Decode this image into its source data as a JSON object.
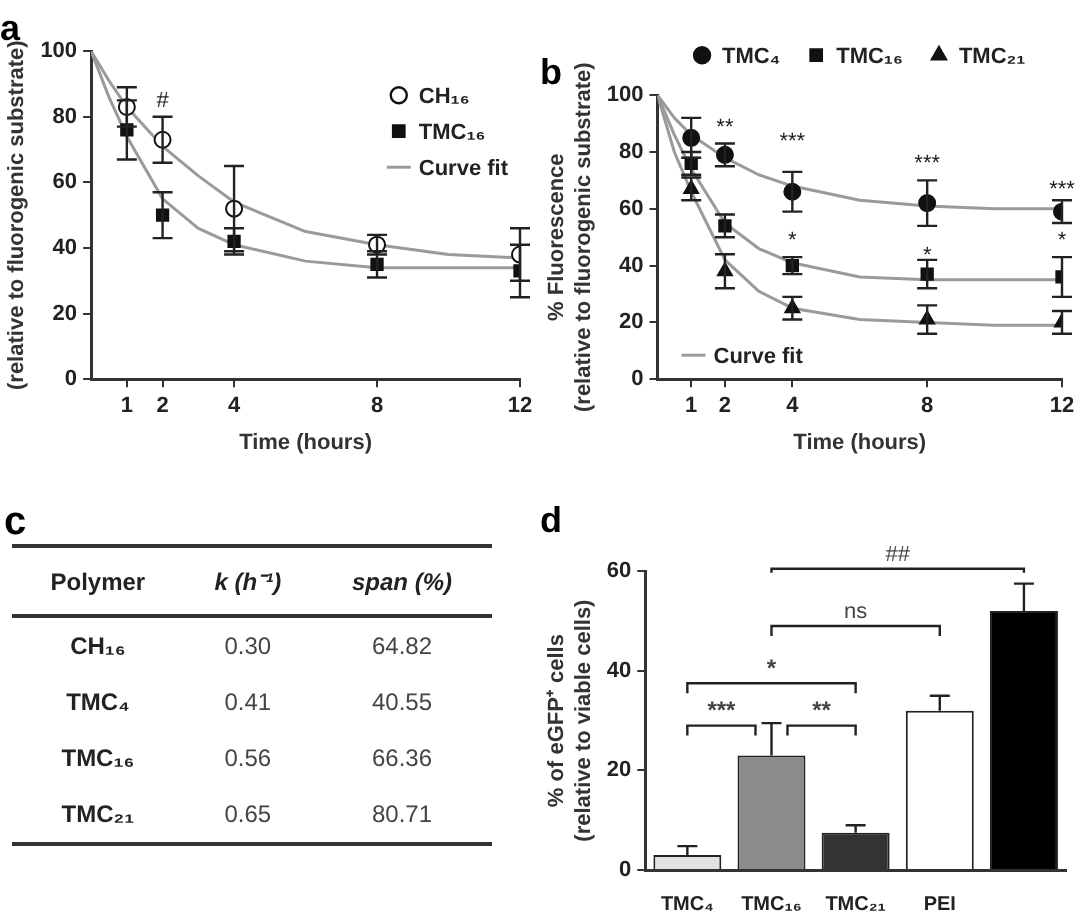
{
  "chart_data": [
    {
      "type": "scatter",
      "title": "a",
      "xlabel": "Time (hours)",
      "ylabel": "(relative to fluorogenic substrate)",
      "xlim": [
        0,
        12
      ],
      "xticks": [
        1,
        2,
        4,
        8,
        12
      ],
      "ylim": [
        0,
        100
      ],
      "yticks": [
        0,
        20,
        40,
        60,
        80,
        100
      ],
      "grid": false,
      "legend": "top right",
      "series": [
        {
          "name": "CH₁₆",
          "color": "#ffffff",
          "marker": "circle",
          "x": [
            1,
            2,
            4,
            8,
            12
          ],
          "values": [
            83,
            73,
            52,
            41,
            38
          ],
          "errors": [
            6,
            7,
            13,
            3,
            8
          ]
        },
        {
          "name": "TMC₁₆",
          "color": "#111111",
          "marker": "square",
          "x": [
            1,
            2,
            4,
            8,
            12
          ],
          "values": [
            76,
            50,
            42,
            35,
            33
          ],
          "errors": [
            9,
            7,
            4,
            4,
            8
          ]
        },
        {
          "name": "Curve fit",
          "type": "line",
          "color": "#9a9a9a",
          "marker": "none",
          "x": [
            0,
            0.5,
            1,
            2,
            3,
            4,
            6,
            8,
            10,
            12
          ],
          "values": [
            100,
            91,
            83,
            71,
            62,
            54,
            45,
            41,
            38,
            37
          ]
        },
        {
          "type": "line",
          "color": "#9a9a9a",
          "marker": "none",
          "x": [
            0,
            0.5,
            1,
            2,
            3,
            4,
            6,
            8,
            10,
            12
          ],
          "values": [
            100,
            86,
            74,
            55,
            46,
            41,
            36,
            34,
            34,
            34
          ]
        }
      ],
      "annotations": [
        "#"
      ]
    },
    {
      "type": "scatter",
      "title": "b",
      "xlabel": "Time (hours)",
      "ylabel": "% Fluorescence\n(relative to fluorogenic substrate)",
      "xlim": [
        0,
        12
      ],
      "xticks": [
        1,
        2,
        4,
        8,
        12
      ],
      "ylim": [
        0,
        100
      ],
      "yticks": [
        0,
        20,
        40,
        60,
        80,
        100
      ],
      "grid": false,
      "legend": "top",
      "series": [
        {
          "name": "TMC₄",
          "color": "#111111",
          "marker": "circle",
          "x": [
            1,
            2,
            4,
            8,
            12
          ],
          "values": [
            85,
            79,
            66,
            62,
            59
          ],
          "errors": [
            7,
            4,
            7,
            8,
            4
          ]
        },
        {
          "name": "TMC₁₆",
          "color": "#111111",
          "marker": "square",
          "x": [
            1,
            2,
            4,
            8,
            12
          ],
          "values": [
            76,
            54,
            40,
            37,
            36
          ],
          "errors": [
            4,
            4,
            3,
            5,
            7
          ]
        },
        {
          "name": "TMC₂₁",
          "color": "#111111",
          "marker": "triangle",
          "x": [
            1,
            2,
            4,
            8,
            12
          ],
          "values": [
            67,
            38,
            25,
            21,
            20
          ],
          "errors": [
            4,
            6,
            4,
            5,
            4
          ]
        },
        {
          "name": "Curve fit",
          "type": "line",
          "color": "#9a9a9a",
          "marker": "none",
          "x": [
            0,
            0.5,
            1,
            2,
            3,
            4,
            6,
            8,
            10,
            12
          ],
          "values": [
            100,
            92,
            86,
            78,
            72,
            68,
            63,
            61,
            60,
            60
          ]
        },
        {
          "type": "line",
          "color": "#9a9a9a",
          "marker": "none",
          "x": [
            0,
            0.5,
            1,
            2,
            3,
            4,
            6,
            8,
            10,
            12
          ],
          "values": [
            100,
            86,
            74,
            55,
            46,
            41,
            36,
            35,
            35,
            35
          ]
        },
        {
          "type": "line",
          "color": "#9a9a9a",
          "marker": "none",
          "x": [
            0,
            0.5,
            1,
            2,
            3,
            4,
            6,
            8,
            10,
            12
          ],
          "values": [
            100,
            80,
            66,
            42,
            31,
            25,
            21,
            20,
            19,
            19
          ]
        }
      ],
      "annotations": [
        "**",
        "***",
        "***",
        "***",
        "*",
        "*",
        "*"
      ]
    },
    {
      "type": "other",
      "title": "c",
      "categories": [
        "Polymer",
        "k (h⁻¹)",
        "span (%)"
      ],
      "y_categories": [
        "CH₁₆",
        "TMC₄",
        "TMC₁₆",
        "TMC₂₁"
      ],
      "cell_labels": [
        [
          "0.30",
          "64.82"
        ],
        [
          "0.41",
          "40.55"
        ],
        [
          "0.56",
          "66.36"
        ],
        [
          "0.65",
          "80.71"
        ]
      ]
    },
    {
      "type": "bar",
      "title": "d",
      "ylabel": "% of eGFP⁺ cells\n(relative to viable cells)",
      "categories": [
        "TMC₄",
        "TMC₁₆",
        "TMC₂₁",
        "PEI",
        null
      ],
      "values": [
        3,
        23,
        7.5,
        32,
        52
      ],
      "errors": [
        1.8,
        6.5,
        1.5,
        3,
        5.5
      ],
      "colors": [
        "#e2e2e2",
        "#8c8c8c",
        "#333333",
        "#ffffff",
        "#000000"
      ],
      "ylim": [
        0,
        60
      ],
      "yticks": [
        0,
        20,
        40,
        60
      ],
      "grid": false,
      "legend": false,
      "annotations": [
        "##",
        "ns",
        "*",
        "***",
        "**"
      ]
    }
  ]
}
